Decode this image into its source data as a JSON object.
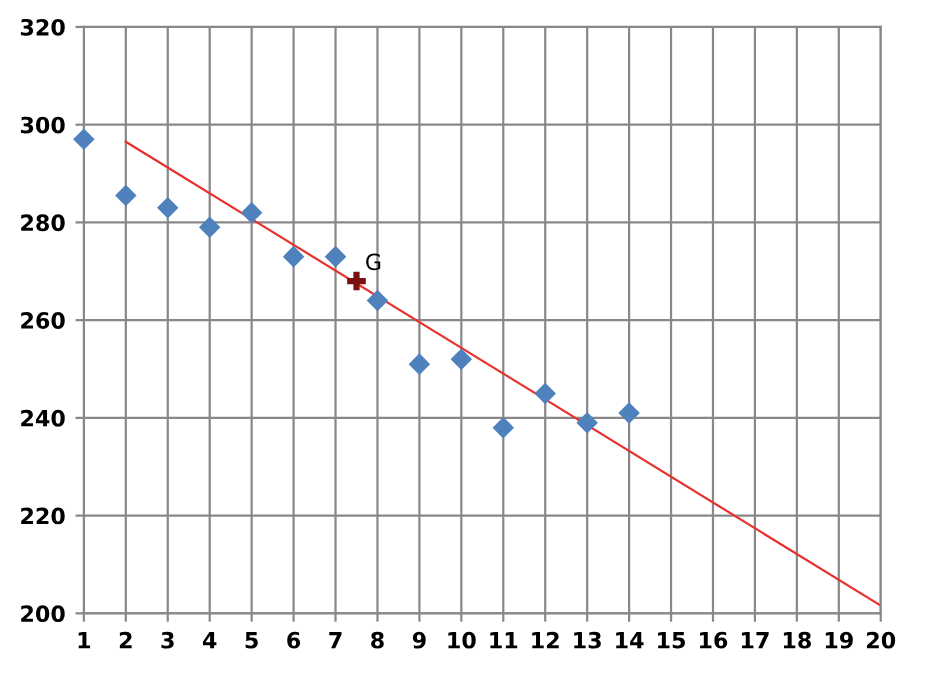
{
  "chart_data": {
    "type": "scatter",
    "x": [
      1,
      2,
      3,
      4,
      5,
      6,
      7,
      8,
      9,
      10,
      11,
      12,
      13,
      14
    ],
    "series": [
      {
        "color": "#4f81bd",
        "marker": "diamond",
        "values": [
          297,
          285.5,
          283,
          279,
          282,
          273,
          273,
          264,
          251,
          252,
          238,
          245,
          239,
          241
        ]
      },
      {
        "type": "line",
        "color": "#e8322e",
        "marker": "none",
        "x": [
          2,
          20
        ],
        "values": [
          296.5,
          201.6
        ]
      },
      {
        "color": "#7a1010",
        "marker": "cross",
        "x": [
          7.5
        ],
        "values": [
          268
        ]
      }
    ],
    "annotations": [
      {
        "text": "G",
        "x": 7.5,
        "y": 268
      }
    ],
    "xlim": [
      1,
      20
    ],
    "xticks": [
      1,
      2,
      3,
      4,
      5,
      6,
      7,
      8,
      9,
      10,
      11,
      12,
      13,
      14,
      15,
      16,
      17,
      18,
      19,
      20
    ],
    "ylim": [
      200,
      320
    ],
    "yticks": [
      200,
      220,
      240,
      260,
      280,
      300,
      320
    ],
    "grid": true
  }
}
